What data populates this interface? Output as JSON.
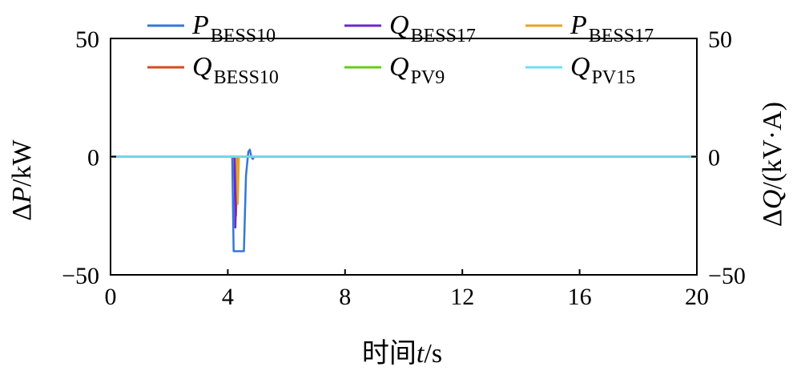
{
  "chart_data": {
    "type": "line",
    "xlabel": "时间t/s",
    "ylabel_left": "ΔP/kW",
    "ylabel_right": "ΔQ/(kV·A)",
    "xlim": [
      0,
      20
    ],
    "ylim_left": [
      -50,
      50
    ],
    "ylim_right": [
      -50,
      50
    ],
    "x_ticks": [
      0,
      4,
      8,
      12,
      16,
      20
    ],
    "y_ticks_left": [
      -50,
      0,
      50
    ],
    "y_ticks_right": [
      -50,
      0,
      50
    ],
    "x_tick_labels": [
      "0",
      "4",
      "8",
      "12",
      "16",
      "20"
    ],
    "y_tick_labels": [
      "−50",
      "0",
      "50"
    ],
    "legend_location": "top",
    "grid": false,
    "series": [
      {
        "name": "P_BESS10",
        "label_main": "P",
        "label_sub": "BESS10",
        "color": "#3478d4",
        "x": [
          0,
          4.15,
          4.2,
          4.55,
          4.62,
          4.7,
          4.75,
          4.8,
          4.85,
          4.9,
          20
        ],
        "y": [
          0,
          0,
          -40,
          -40,
          -8,
          2,
          3,
          0,
          -1,
          0,
          0
        ]
      },
      {
        "name": "Q_BESS10",
        "label_main": "Q",
        "label_sub": "BESS10",
        "color": "#d94a1e",
        "x": [
          0,
          4.25,
          4.28,
          4.33,
          20
        ],
        "y": [
          0,
          0,
          -25,
          0,
          0
        ]
      },
      {
        "name": "Q_BESS17",
        "label_main": "Q",
        "label_sub": "BESS17",
        "color": "#6a2bc9",
        "x": [
          0,
          4.22,
          4.26,
          4.3,
          20
        ],
        "y": [
          0,
          0,
          -30,
          0,
          0
        ]
      },
      {
        "name": "Q_PV9",
        "label_main": "Q",
        "label_sub": "PV9",
        "color": "#66cc1a",
        "x": [
          0,
          20
        ],
        "y": [
          0,
          0
        ]
      },
      {
        "name": "P_BESS17",
        "label_main": "P",
        "label_sub": "BESS17",
        "color": "#e6a22a",
        "x": [
          0,
          4.3,
          4.34,
          4.38,
          20
        ],
        "y": [
          0,
          0,
          -20,
          0,
          0
        ]
      },
      {
        "name": "Q_PV15",
        "label_main": "Q",
        "label_sub": "PV15",
        "color": "#6fdff0",
        "x": [
          0,
          20
        ],
        "y": [
          0,
          0
        ]
      }
    ]
  }
}
